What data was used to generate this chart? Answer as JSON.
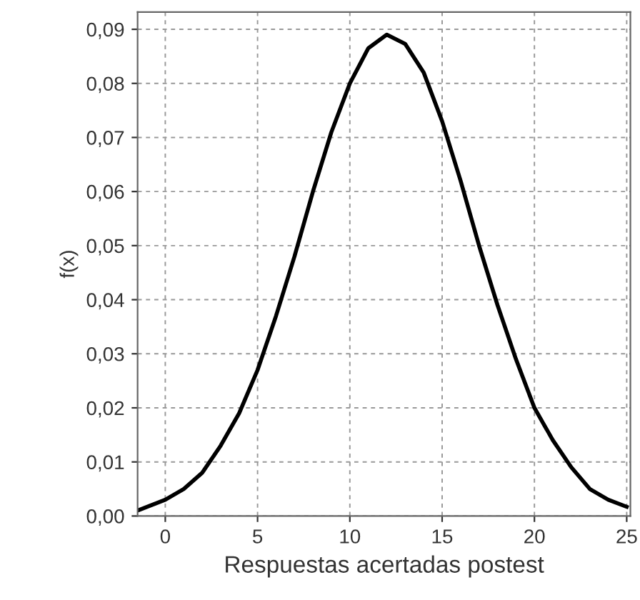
{
  "chart_data": {
    "type": "line",
    "xlabel": "Respuestas acertadas postest",
    "ylabel": "f(x)",
    "x": [
      -1.5,
      0,
      1,
      2,
      3,
      4,
      5,
      6,
      7,
      8,
      9,
      10,
      11,
      12,
      13,
      14,
      15,
      16,
      17,
      18,
      19,
      20,
      21,
      22,
      23,
      24,
      25
    ],
    "series": [
      {
        "color": "#000000",
        "values": [
          0.001,
          0.003,
          0.005,
          0.008,
          0.013,
          0.019,
          0.027,
          0.037,
          0.048,
          0.06,
          0.071,
          0.08,
          0.0865,
          0.089,
          0.0873,
          0.082,
          0.073,
          0.062,
          0.05,
          0.039,
          0.029,
          0.02,
          0.014,
          0.009,
          0.005,
          0.003,
          0.0017
        ]
      }
    ],
    "xlim": [
      -1.5,
      25.2
    ],
    "ylim": [
      0,
      0.0932
    ],
    "xticks": [
      0,
      5,
      10,
      15,
      20,
      25
    ],
    "yticks": [
      {
        "value": 0,
        "label": "0,00"
      },
      {
        "value": 0.01,
        "label": "0,01"
      },
      {
        "value": 0.02,
        "label": "0,02"
      },
      {
        "value": 0.03,
        "label": "0,03"
      },
      {
        "value": 0.04,
        "label": "0,04"
      },
      {
        "value": 0.05,
        "label": "0,05"
      },
      {
        "value": 0.06,
        "label": "0,06"
      },
      {
        "value": 0.07,
        "label": "0,07"
      },
      {
        "value": 0.08,
        "label": "0,08"
      },
      {
        "value": 0.09,
        "label": "0,09"
      }
    ],
    "grid": true,
    "line_style": "solid",
    "marker": "none"
  }
}
